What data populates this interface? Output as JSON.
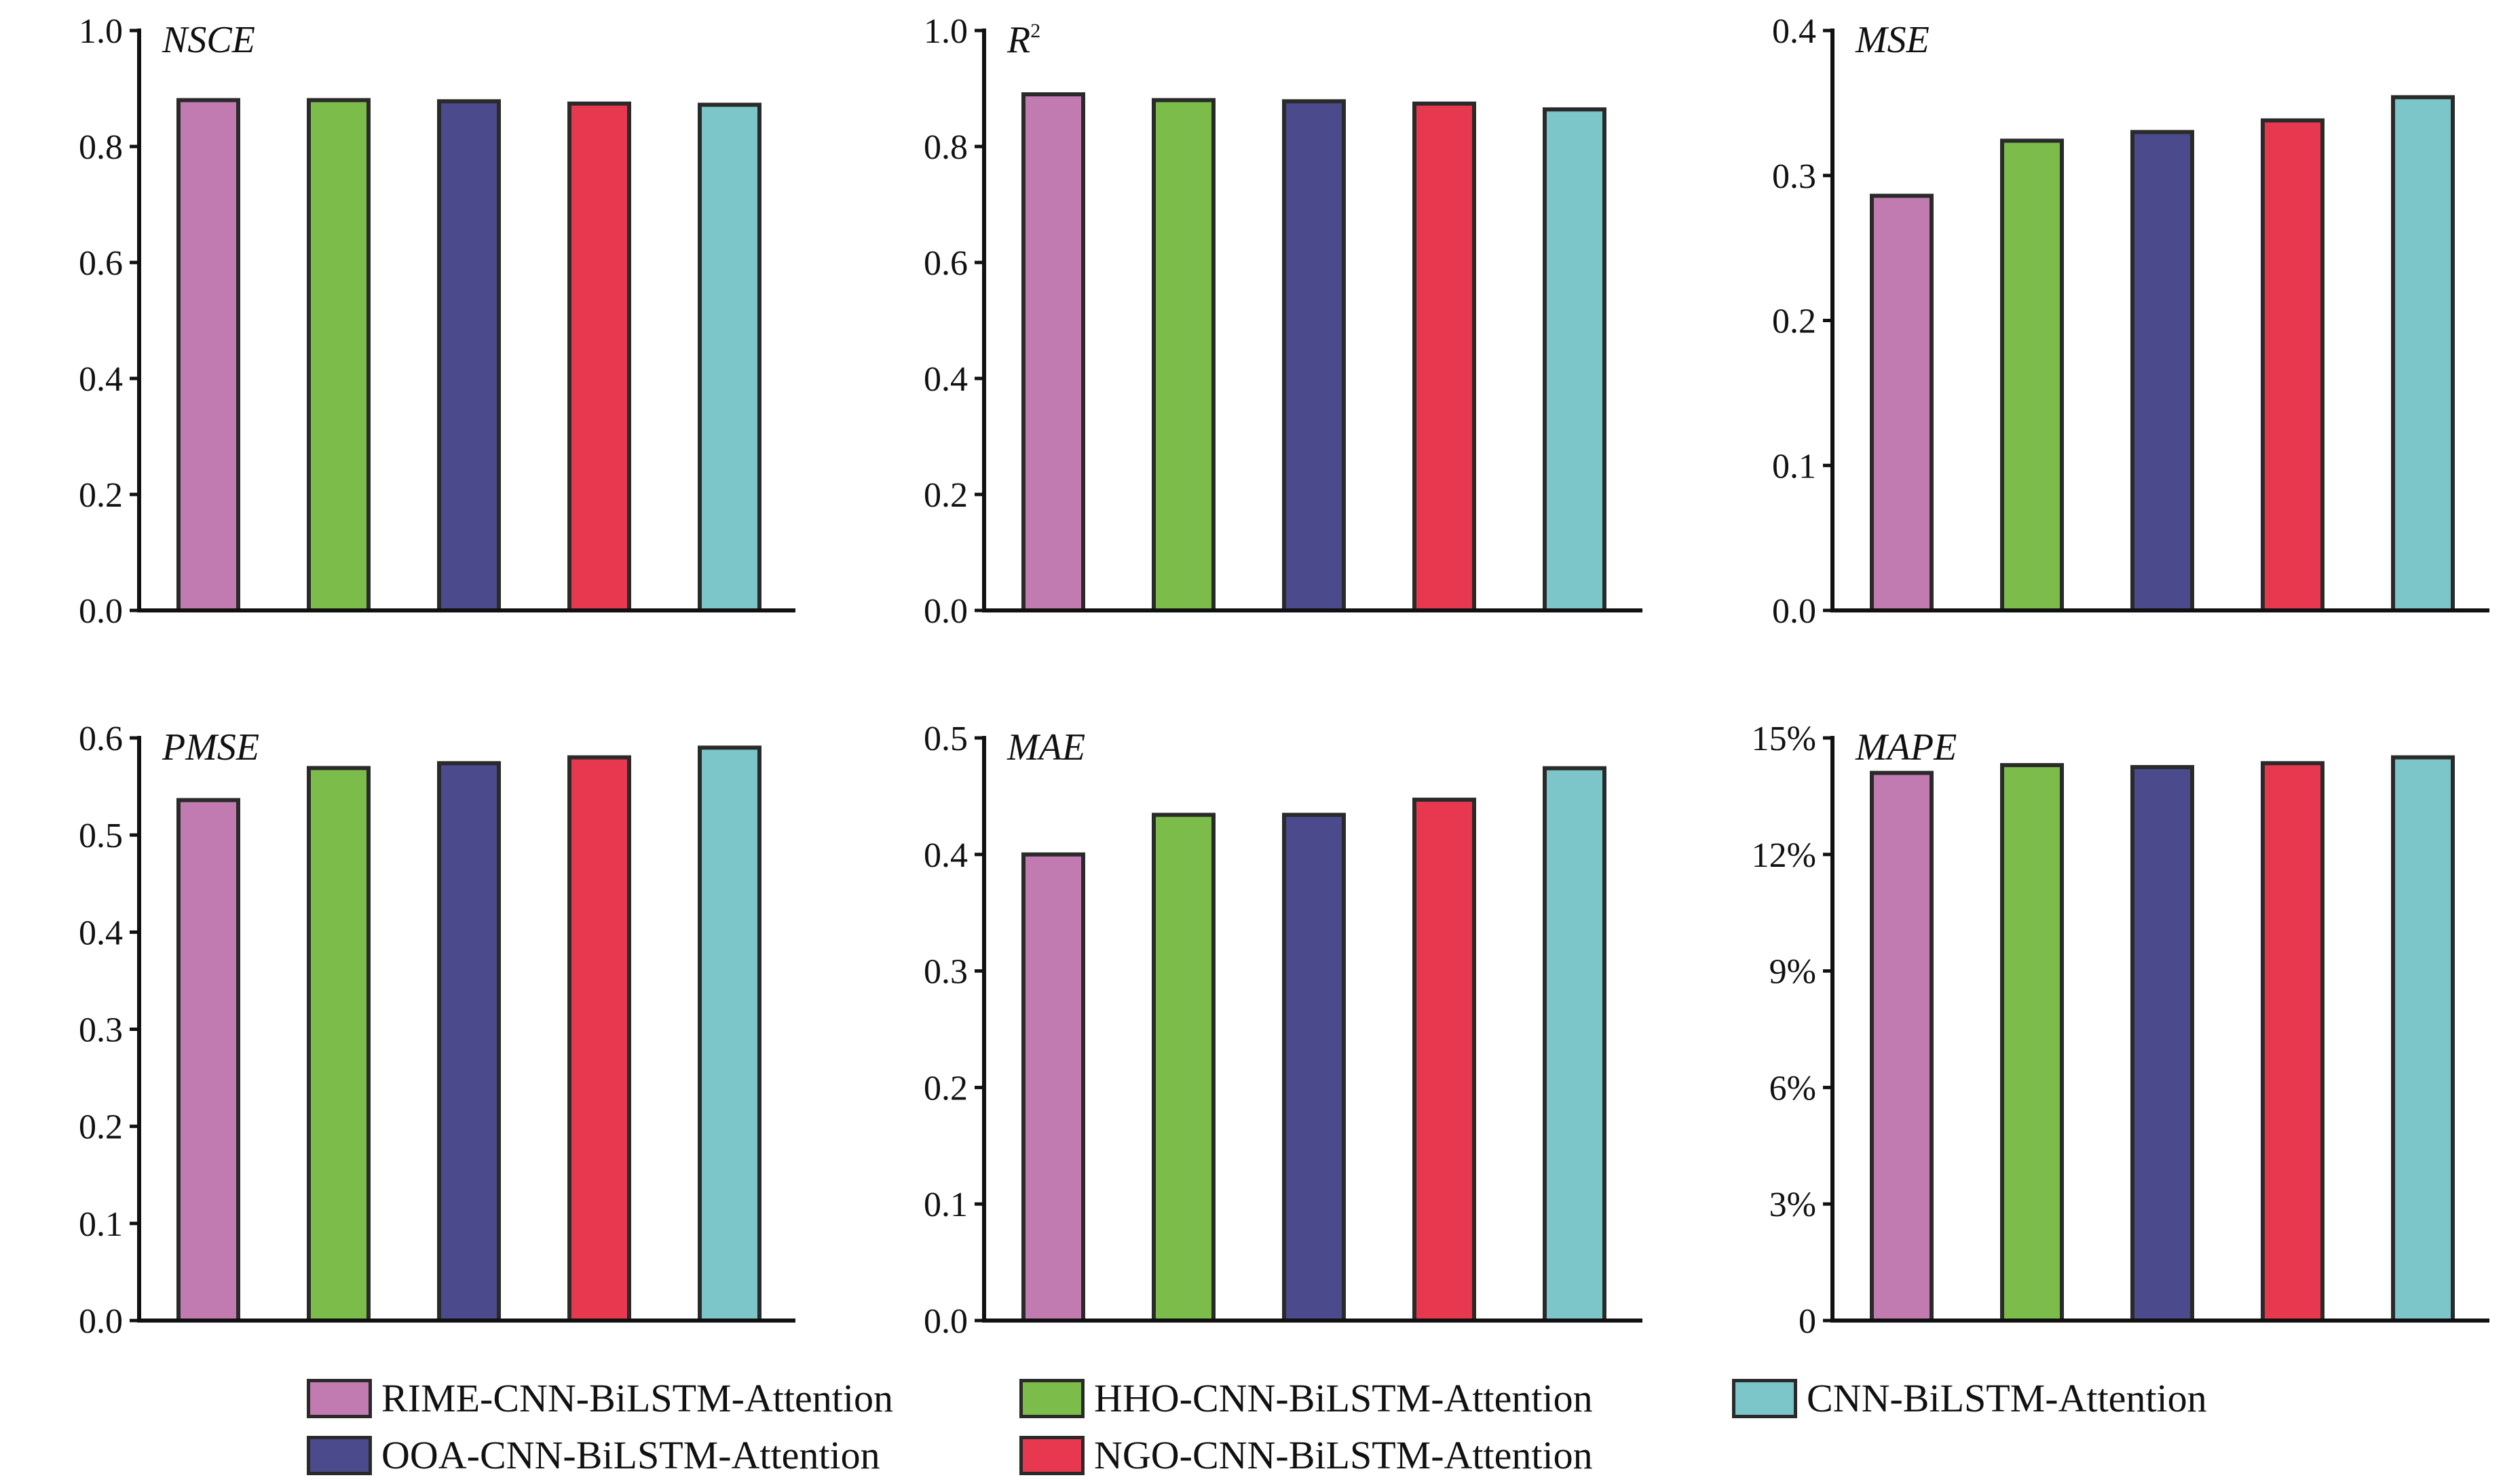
{
  "legend": [
    {
      "label": "RIME-CNN-BiLSTM-Attention",
      "color": "#c27bb0"
    },
    {
      "label": "HHO-CNN-BiLSTM-Attention",
      "color": "#7cbc4b"
    },
    {
      "label": "CNN-BiLSTM-Attention",
      "color": "#7cc5c9"
    },
    {
      "label": "OOA-CNN-BiLSTM-Attention",
      "color": "#4a4a8c"
    },
    {
      "label": "NGO-CNN-BiLSTM-Attention",
      "color": "#e8384f"
    }
  ],
  "chart_data": [
    {
      "type": "bar",
      "title": "NSCE",
      "categories": [
        "RIME-CNN-BiLSTM-Attention",
        "HHO-CNN-BiLSTM-Attention",
        "OOA-CNN-BiLSTM-Attention",
        "NGO-CNN-BiLSTM-Attention",
        "CNN-BiLSTM-Attention"
      ],
      "values": [
        0.88,
        0.88,
        0.878,
        0.874,
        0.872
      ],
      "ylim": [
        0,
        1.0
      ],
      "yticks": [
        "0.0",
        "0.2",
        "0.4",
        "0.6",
        "0.8",
        "1.0"
      ],
      "xlabel": "",
      "ylabel": ""
    },
    {
      "type": "bar",
      "title": "R",
      "title_sup": "2",
      "categories": [
        "RIME-CNN-BiLSTM-Attention",
        "HHO-CNN-BiLSTM-Attention",
        "OOA-CNN-BiLSTM-Attention",
        "NGO-CNN-BiLSTM-Attention",
        "CNN-BiLSTM-Attention"
      ],
      "values": [
        0.89,
        0.88,
        0.878,
        0.874,
        0.864
      ],
      "ylim": [
        0,
        1.0
      ],
      "yticks": [
        "0.0",
        "0.2",
        "0.4",
        "0.6",
        "0.8",
        "1.0"
      ],
      "xlabel": "",
      "ylabel": ""
    },
    {
      "type": "bar",
      "title": "MSE",
      "categories": [
        "RIME-CNN-BiLSTM-Attention",
        "HHO-CNN-BiLSTM-Attention",
        "OOA-CNN-BiLSTM-Attention",
        "NGO-CNN-BiLSTM-Attention",
        "CNN-BiLSTM-Attention"
      ],
      "values": [
        0.286,
        0.324,
        0.33,
        0.338,
        0.354
      ],
      "ylim": [
        0,
        0.4
      ],
      "yticks": [
        "0.0",
        "0.1",
        "0.2",
        "0.3",
        "0.4"
      ],
      "xlabel": "",
      "ylabel": ""
    },
    {
      "type": "bar",
      "title": "PMSE",
      "categories": [
        "RIME-CNN-BiLSTM-Attention",
        "HHO-CNN-BiLSTM-Attention",
        "OOA-CNN-BiLSTM-Attention",
        "NGO-CNN-BiLSTM-Attention",
        "CNN-BiLSTM-Attention"
      ],
      "values": [
        0.536,
        0.569,
        0.574,
        0.58,
        0.59
      ],
      "ylim": [
        0,
        0.6
      ],
      "yticks": [
        "0.0",
        "0.1",
        "0.2",
        "0.3",
        "0.4",
        "0.5",
        "0.6"
      ],
      "xlabel": "",
      "ylabel": ""
    },
    {
      "type": "bar",
      "title": "MAE",
      "categories": [
        "RIME-CNN-BiLSTM-Attention",
        "HHO-CNN-BiLSTM-Attention",
        "OOA-CNN-BiLSTM-Attention",
        "NGO-CNN-BiLSTM-Attention",
        "CNN-BiLSTM-Attention"
      ],
      "values": [
        0.4,
        0.434,
        0.434,
        0.447,
        0.474
      ],
      "ylim": [
        0,
        0.5
      ],
      "yticks": [
        "0.0",
        "0.1",
        "0.2",
        "0.3",
        "0.4",
        "0.5"
      ],
      "xlabel": "",
      "ylabel": ""
    },
    {
      "type": "bar",
      "title": "MAPE",
      "categories": [
        "RIME-CNN-BiLSTM-Attention",
        "HHO-CNN-BiLSTM-Attention",
        "OOA-CNN-BiLSTM-Attention",
        "NGO-CNN-BiLSTM-Attention",
        "CNN-BiLSTM-Attention"
      ],
      "values": [
        14.1,
        14.3,
        14.25,
        14.35,
        14.5
      ],
      "ylim": [
        0,
        15
      ],
      "yticks": [
        "0",
        "3%",
        "6%",
        "9%",
        "12%",
        "15%"
      ],
      "xlabel": "",
      "ylabel": ""
    }
  ]
}
